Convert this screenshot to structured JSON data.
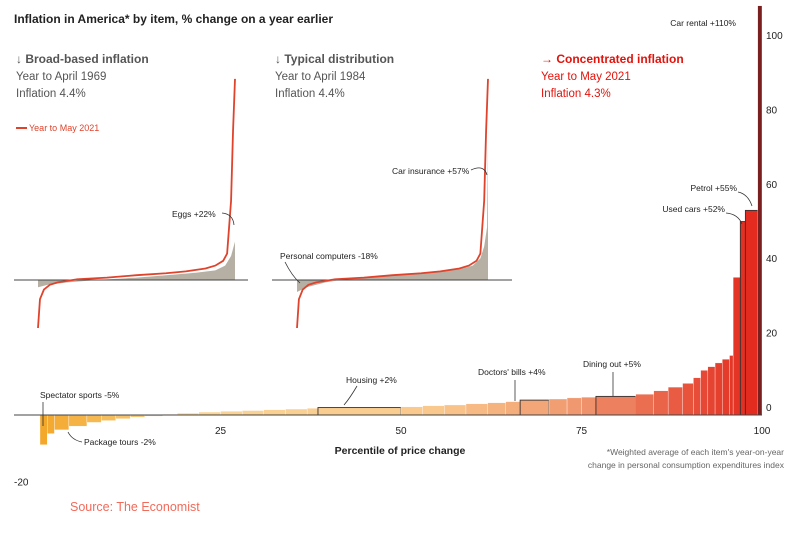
{
  "title": "Inflation in America* by item, % change on a year earlier",
  "footnote": [
    "*Weighted average of each item's year-on-year",
    "change in personal consumption expenditures index"
  ],
  "source": "Source: The Economist",
  "colors": {
    "grey_series": "#a8a293",
    "red_line": "#e0432c",
    "axis": "#444444",
    "text": "#222222",
    "dark_red": "#7a1f1f",
    "red_heading": "#e3120b",
    "grey_heading": "#555555"
  },
  "panels": [
    {
      "arrow": "↓",
      "heading": "Broad-based inflation",
      "line2": "Year to April 1969",
      "line3": "Inflation 4.4%",
      "style": "grey"
    },
    {
      "arrow": "↓",
      "heading": "Typical distribution",
      "line2": "Year to April 1984",
      "line3": "Inflation 4.4%",
      "style": "grey"
    },
    {
      "arrow": "→",
      "heading": "Concentrated inflation",
      "line2": "Year to May 2021",
      "line3": "Inflation 4.3%",
      "style": "red"
    }
  ],
  "legend": {
    "label": "Year to May 2021"
  },
  "inset_labels": [
    {
      "text": "Eggs +22%"
    },
    {
      "text": "Car insurance +57%"
    },
    {
      "text": "Personal computers -18%"
    }
  ],
  "chart_data": [
    {
      "type": "bar",
      "title": "Inflation in America* by item, % change on a year earlier",
      "xlabel": "Percentile of price change",
      "ylabel": "",
      "xlim": [
        0,
        100
      ],
      "ylim": [
        -26,
        110
      ],
      "x_ticks": [
        25,
        50,
        75,
        100
      ],
      "y_ticks": [
        -20,
        0,
        20,
        40,
        60,
        80,
        100
      ],
      "grid": false,
      "note": "Bar width proportional to item weight; items sorted by price change",
      "series": [
        {
          "values": [
            {
              "x0": 0.0,
              "x1": 1.0,
              "y": -8
            },
            {
              "x0": 1.0,
              "x1": 2.0,
              "y": -5
            },
            {
              "x0": 2.0,
              "x1": 4.0,
              "y": -4
            },
            {
              "x0": 4.0,
              "x1": 6.5,
              "y": -3
            },
            {
              "x0": 6.5,
              "x1": 8.5,
              "y": -2
            },
            {
              "x0": 8.5,
              "x1": 10.5,
              "y": -1.5
            },
            {
              "x0": 10.5,
              "x1": 12.5,
              "y": -1
            },
            {
              "x0": 12.5,
              "x1": 14.5,
              "y": -0.6
            },
            {
              "x0": 14.5,
              "x1": 17.0,
              "y": -0.3
            },
            {
              "x0": 17.0,
              "x1": 19.0,
              "y": 0.2
            },
            {
              "x0": 19.0,
              "x1": 22.0,
              "y": 0.5
            },
            {
              "x0": 22.0,
              "x1": 25.0,
              "y": 0.8
            },
            {
              "x0": 25.0,
              "x1": 28.0,
              "y": 1.0
            },
            {
              "x0": 28.0,
              "x1": 31.0,
              "y": 1.2
            },
            {
              "x0": 31.0,
              "x1": 34.0,
              "y": 1.4
            },
            {
              "x0": 34.0,
              "x1": 37.0,
              "y": 1.6
            },
            {
              "x0": 37.0,
              "x1": 38.5,
              "y": 1.8
            },
            {
              "x0": 38.5,
              "x1": 50.0,
              "y": 2.0
            },
            {
              "x0": 50.0,
              "x1": 53.0,
              "y": 2.2
            },
            {
              "x0": 53.0,
              "x1": 56.0,
              "y": 2.5
            },
            {
              "x0": 56.0,
              "x1": 59.0,
              "y": 2.7
            },
            {
              "x0": 59.0,
              "x1": 62.0,
              "y": 3.0
            },
            {
              "x0": 62.0,
              "x1": 64.5,
              "y": 3.3
            },
            {
              "x0": 64.5,
              "x1": 66.5,
              "y": 3.6
            },
            {
              "x0": 66.5,
              "x1": 70.5,
              "y": 4.0
            },
            {
              "x0": 70.5,
              "x1": 73.0,
              "y": 4.3
            },
            {
              "x0": 73.0,
              "x1": 75.0,
              "y": 4.6
            },
            {
              "x0": 75.0,
              "x1": 77.0,
              "y": 4.8
            },
            {
              "x0": 77.0,
              "x1": 82.5,
              "y": 5.0
            },
            {
              "x0": 82.5,
              "x1": 85.0,
              "y": 5.6
            },
            {
              "x0": 85.0,
              "x1": 87.0,
              "y": 6.5
            },
            {
              "x0": 87.0,
              "x1": 89.0,
              "y": 7.5
            },
            {
              "x0": 89.0,
              "x1": 90.5,
              "y": 8.5
            },
            {
              "x0": 90.5,
              "x1": 91.5,
              "y": 10
            },
            {
              "x0": 91.5,
              "x1": 92.5,
              "y": 12
            },
            {
              "x0": 92.5,
              "x1": 93.5,
              "y": 13
            },
            {
              "x0": 93.5,
              "x1": 94.5,
              "y": 14
            },
            {
              "x0": 94.5,
              "x1": 95.5,
              "y": 15
            },
            {
              "x0": 95.5,
              "x1": 96.0,
              "y": 16
            },
            {
              "x0": 96.0,
              "x1": 97.0,
              "y": 37
            },
            {
              "x0": 97.0,
              "x1": 97.7,
              "y": 52
            },
            {
              "x0": 97.7,
              "x1": 99.4,
              "y": 55
            },
            {
              "x0": 99.4,
              "x1": 100.0,
              "y": 110
            }
          ]
        }
      ],
      "annotations": [
        {
          "text": "Car rental +110%",
          "x": 99.7,
          "y": 110
        },
        {
          "text": "Petrol +55%",
          "x": 98.5,
          "y": 55
        },
        {
          "text": "Used cars +52%",
          "x": 97.3,
          "y": 52
        },
        {
          "text": "Dining out +5%",
          "x": 80,
          "y": 5
        },
        {
          "text": "Doctors' bills +4%",
          "x": 68.5,
          "y": 4
        },
        {
          "text": "Housing +2%",
          "x": 44,
          "y": 2
        },
        {
          "text": "Spectator sports -5%",
          "x": 1.5,
          "y": -5
        },
        {
          "text": "Package tours -2%",
          "x": 7.5,
          "y": -2
        }
      ]
    },
    {
      "type": "line",
      "title": "Broad-based inflation",
      "xlim": [
        0,
        100
      ],
      "ylim": [
        -20,
        100
      ],
      "series": [
        {
          "name": "Year to April 1969",
          "x": [
            0,
            5,
            15,
            30,
            50,
            65,
            80,
            90,
            95,
            98,
            100
          ],
          "y": [
            -3,
            -2,
            -1,
            0,
            1,
            2,
            3,
            4,
            6,
            10,
            16
          ]
        },
        {
          "name": "Year to May 2021",
          "x": [
            0,
            1,
            3,
            6,
            10,
            20,
            35,
            50,
            65,
            75,
            85,
            90,
            94,
            96,
            98,
            99,
            100
          ],
          "y": [
            -20,
            -8,
            -4,
            -2,
            -1,
            0.3,
            1.0,
            2.0,
            2.8,
            3.6,
            4.8,
            6,
            8,
            11,
            33,
            62,
            110
          ]
        }
      ]
    },
    {
      "type": "line",
      "title": "Typical distribution",
      "xlim": [
        0,
        100
      ],
      "ylim": [
        -20,
        100
      ],
      "series": [
        {
          "name": "Year to April 1984",
          "x": [
            0,
            5,
            15,
            30,
            50,
            70,
            85,
            92,
            96,
            98,
            99.5,
            100
          ],
          "y": [
            -5,
            -3,
            -1,
            1,
            2,
            3,
            4.5,
            6,
            9,
            14,
            22,
            57
          ]
        },
        {
          "name": "Year to May 2021",
          "x": [
            0,
            1,
            3,
            6,
            10,
            20,
            35,
            50,
            65,
            75,
            85,
            90,
            94,
            96,
            98,
            99,
            100
          ],
          "y": [
            -20,
            -8,
            -4,
            -2,
            -1,
            0.3,
            1.0,
            2.0,
            2.8,
            3.6,
            4.8,
            6,
            8,
            11,
            33,
            62,
            110
          ]
        }
      ]
    }
  ]
}
